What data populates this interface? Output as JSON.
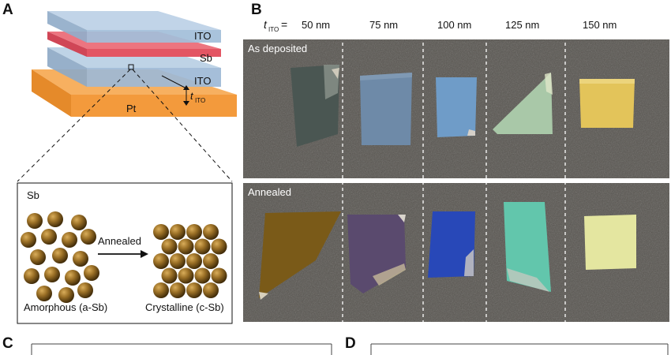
{
  "figure": {
    "panels": {
      "A": "A",
      "B": "B",
      "C": "C",
      "D": "D"
    },
    "panelA": {
      "layers": {
        "ito_top": "ITO",
        "sb": "Sb",
        "ito_bottom": "ITO",
        "pt": "Pt"
      },
      "thickness_symbol": "t",
      "thickness_subscript": "ITO",
      "inset": {
        "title": "Sb",
        "arrow_label": "Annealed",
        "left_caption": "Amorphous (a-Sb)",
        "right_caption": "Crystalline (c-Sb)"
      }
    },
    "panelB": {
      "header_symbol": "t",
      "header_subscript": "ITO",
      "header_equals": "=",
      "columns": [
        "50 nm",
        "75 nm",
        "100 nm",
        "125 nm",
        "150 nm"
      ],
      "rows": [
        "As deposited",
        "Annealed"
      ]
    },
    "colors": {
      "ito": "#a9c3dd",
      "sb": "#e8606b",
      "pt": "#f5a24a",
      "sphere": "#8a6420",
      "photo_bg": "#55524e",
      "deposited": [
        "#4a5652",
        "#6e8aa8",
        "#6f9cc8",
        "#a9c8a8",
        "#e3c45a"
      ],
      "annealed": [
        "#7a5a18",
        "#5a4a6e",
        "#2848b8",
        "#62c6ac",
        "#e4e6a0"
      ]
    }
  }
}
